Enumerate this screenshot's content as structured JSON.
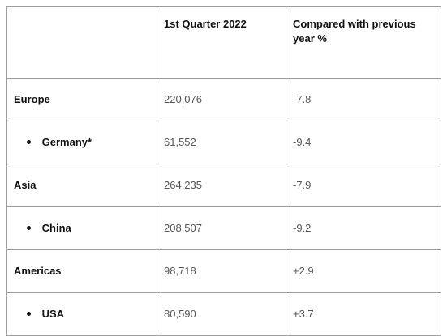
{
  "table": {
    "headers": {
      "region": "",
      "q1": "1st Quarter 2022",
      "change": "Compared with previous year %"
    },
    "rows": [
      {
        "label": "Europe",
        "q1": "220,076",
        "change": "-7.8",
        "is_sub": false
      },
      {
        "label": "Germany*",
        "q1": "61,552",
        "change": "-9.4",
        "is_sub": true
      },
      {
        "label": "Asia",
        "q1": "264,235",
        "change": "-7.9",
        "is_sub": false
      },
      {
        "label": "China",
        "q1": "208,507",
        "change": "-9.2",
        "is_sub": true
      },
      {
        "label": "Americas",
        "q1": "98,718",
        "change": "+2.9",
        "is_sub": false
      },
      {
        "label": "USA",
        "q1": "80,590",
        "change": "+3.7",
        "is_sub": true
      }
    ]
  }
}
